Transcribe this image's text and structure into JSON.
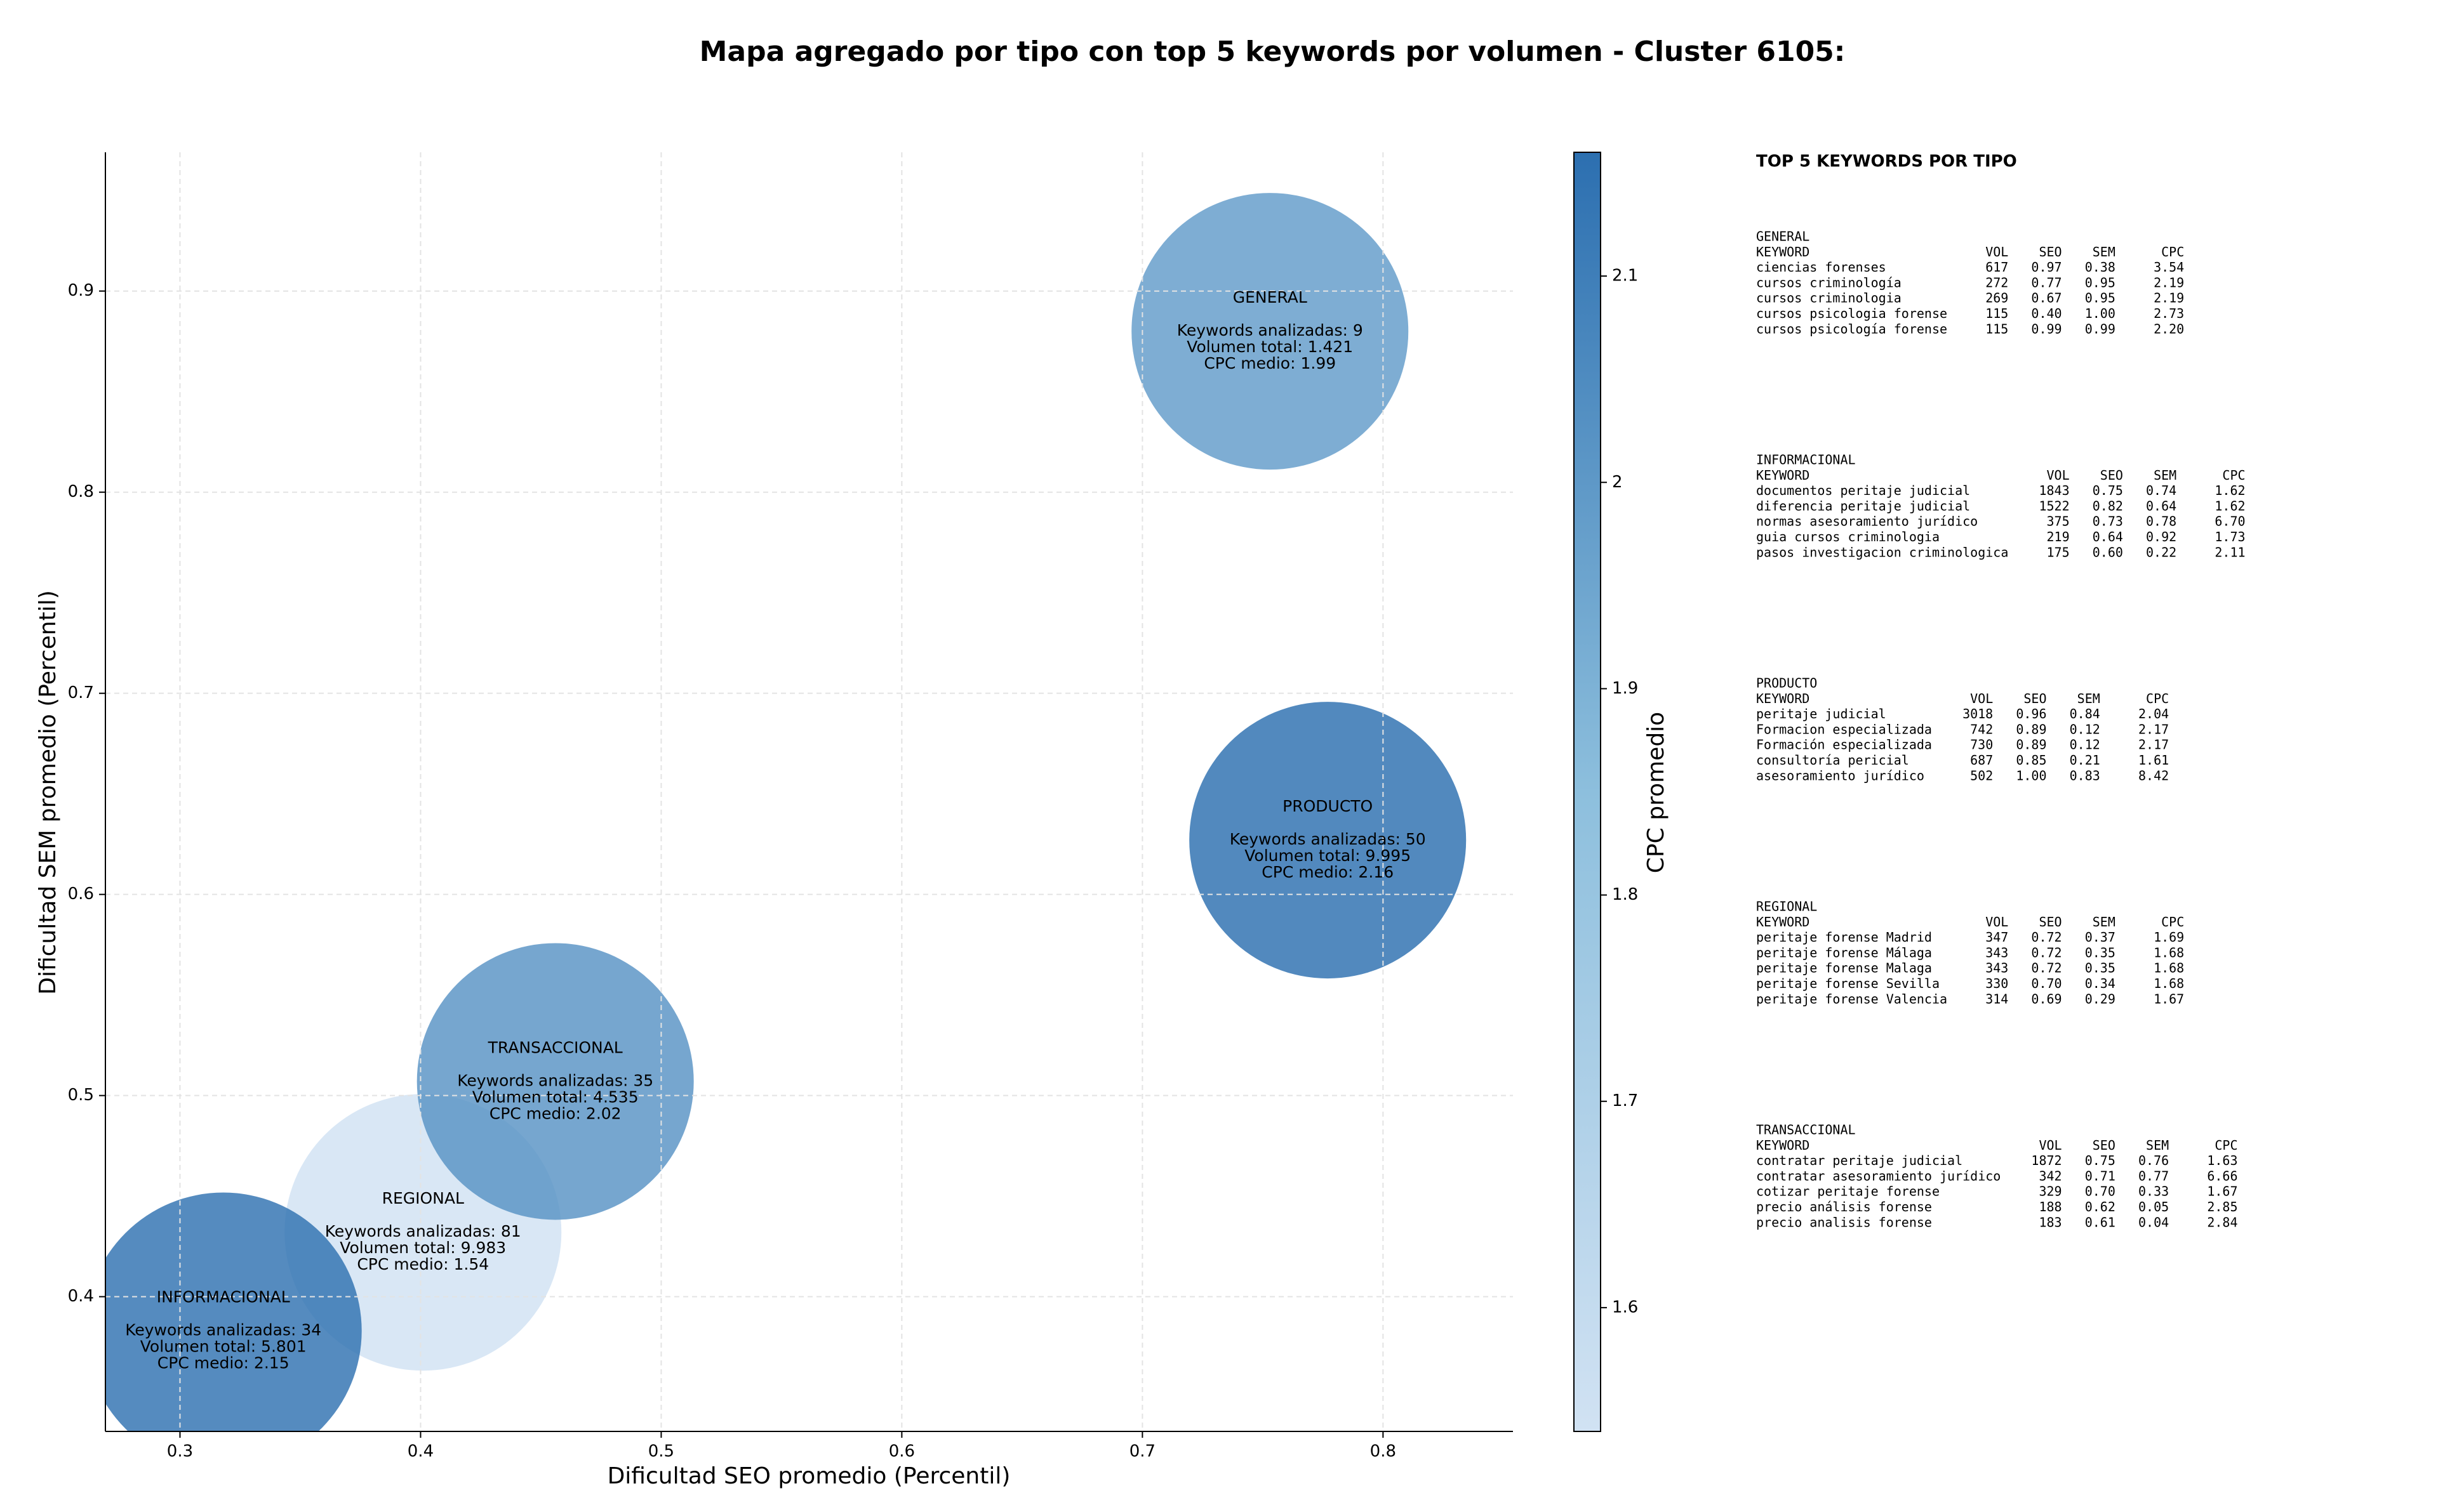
{
  "chart_data": {
    "type": "bubble",
    "title": "Mapa agregado por tipo con top 5 keywords por volumen - Cluster 6105:",
    "x_label": "Dificultad SEO promedio (Percentil)",
    "y_label": "Dificultad SEM promedio (Percentil)",
    "xlim": [
      0.269,
      0.854
    ],
    "ylim": [
      0.333,
      0.969
    ],
    "xticks": [
      0.3,
      0.4,
      0.5,
      0.6,
      0.7,
      0.8
    ],
    "yticks": [
      0.4,
      0.5,
      0.6,
      0.7,
      0.8,
      0.9
    ],
    "grid": true,
    "colorbar": {
      "label": "CPC promedio",
      "lim": [
        1.54,
        2.16
      ],
      "ticks": [
        1.6,
        1.7,
        1.8,
        1.9,
        2.0,
        2.1
      ]
    },
    "points": [
      {
        "name": "REGIONAL",
        "x": 0.401,
        "y": 0.432,
        "cpc": 1.54,
        "labels": [
          "Keywords analizadas: 81",
          "Volumen total: 9.983",
          "CPC medio: 1.54"
        ]
      },
      {
        "name": "INFORMACIONAL",
        "x": 0.318,
        "y": 0.383,
        "cpc": 2.15,
        "labels": [
          "Keywords analizadas: 34",
          "Volumen total: 5.801",
          "CPC medio: 2.15"
        ]
      },
      {
        "name": "TRANSACCIONAL",
        "x": 0.456,
        "y": 0.507,
        "cpc": 2.02,
        "labels": [
          "Keywords analizadas: 35",
          "Volumen total: 4.535",
          "CPC medio: 2.02"
        ]
      },
      {
        "name": "PRODUCTO",
        "x": 0.777,
        "y": 0.627,
        "cpc": 2.16,
        "labels": [
          "Keywords analizadas: 50",
          "Volumen total: 9.995",
          "CPC medio: 2.16"
        ]
      },
      {
        "name": "GENERAL",
        "x": 0.753,
        "y": 0.88,
        "cpc": 1.99,
        "labels": [
          "Keywords analizadas: 9",
          "Volumen total: 1.421",
          "CPC medio: 1.99"
        ]
      }
    ]
  },
  "panel": {
    "title": "TOP 5 KEYWORDS POR TIPO",
    "columns": [
      "KEYWORD",
      "VOL",
      "SEO",
      "SEM",
      "CPC"
    ],
    "sections": [
      {
        "name": "GENERAL",
        "rows": [
          [
            "ciencias forenses",
            "617",
            "0.97",
            "0.38",
            "3.54"
          ],
          [
            "cursos criminología",
            "272",
            "0.77",
            "0.95",
            "2.19"
          ],
          [
            "cursos criminologia",
            "269",
            "0.67",
            "0.95",
            "2.19"
          ],
          [
            "cursos psicologia forense",
            "115",
            "0.40",
            "1.00",
            "2.73"
          ],
          [
            "cursos psicología forense",
            "115",
            "0.99",
            "0.99",
            "2.20"
          ]
        ]
      },
      {
        "name": "INFORMACIONAL",
        "rows": [
          [
            "documentos peritaje judicial",
            "1843",
            "0.75",
            "0.74",
            "1.62"
          ],
          [
            "diferencia peritaje judicial",
            "1522",
            "0.82",
            "0.64",
            "1.62"
          ],
          [
            "normas asesoramiento jurídico",
            "375",
            "0.73",
            "0.78",
            "6.70"
          ],
          [
            "guia cursos criminologia",
            "219",
            "0.64",
            "0.92",
            "1.73"
          ],
          [
            "pasos investigacion criminologica",
            "175",
            "0.60",
            "0.22",
            "2.11"
          ]
        ]
      },
      {
        "name": "PRODUCTO",
        "rows": [
          [
            "peritaje judicial",
            "3018",
            "0.96",
            "0.84",
            "2.04"
          ],
          [
            "Formacion especializada",
            "742",
            "0.89",
            "0.12",
            "2.17"
          ],
          [
            "Formación especializada",
            "730",
            "0.89",
            "0.12",
            "2.17"
          ],
          [
            "consultoría pericial",
            "687",
            "0.85",
            "0.21",
            "1.61"
          ],
          [
            "asesoramiento jurídico",
            "502",
            "1.00",
            "0.83",
            "8.42"
          ]
        ]
      },
      {
        "name": "REGIONAL",
        "rows": [
          [
            "peritaje forense Madrid",
            "347",
            "0.72",
            "0.37",
            "1.69"
          ],
          [
            "peritaje forense Málaga",
            "343",
            "0.72",
            "0.35",
            "1.68"
          ],
          [
            "peritaje forense Malaga",
            "343",
            "0.72",
            "0.35",
            "1.68"
          ],
          [
            "peritaje forense Sevilla",
            "330",
            "0.70",
            "0.34",
            "1.68"
          ],
          [
            "peritaje forense Valencia",
            "314",
            "0.69",
            "0.29",
            "1.67"
          ]
        ]
      },
      {
        "name": "TRANSACCIONAL",
        "rows": [
          [
            "contratar peritaje judicial",
            "1872",
            "0.75",
            "0.76",
            "1.63"
          ],
          [
            "contratar asesoramiento jurídico",
            "342",
            "0.71",
            "0.77",
            "6.66"
          ],
          [
            "cotizar peritaje forense",
            "329",
            "0.70",
            "0.33",
            "1.67"
          ],
          [
            "precio análisis forense",
            "188",
            "0.62",
            "0.05",
            "2.85"
          ],
          [
            "precio analisis forense",
            "183",
            "0.61",
            "0.04",
            "2.84"
          ]
        ]
      }
    ]
  }
}
